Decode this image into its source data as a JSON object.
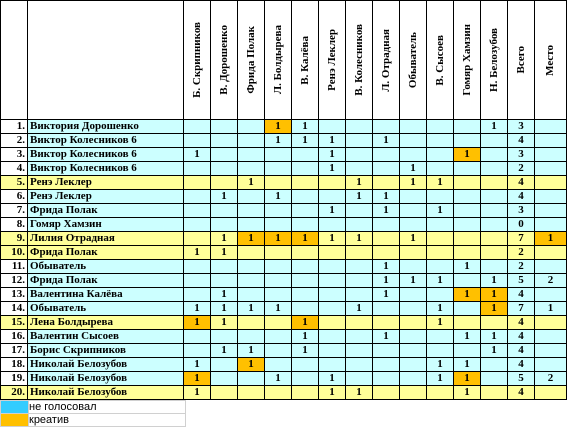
{
  "header": {
    "voters": [
      "Б. Скрипников",
      "В. Дорошенко",
      "Фрида Полак",
      "Л. Болдырева",
      "В. Калёва",
      "Ренэ Леклер",
      "В. Колесников",
      "Л. Отрадная",
      "Обыватель",
      "В. Сысоев",
      "Гомяр Хамзин",
      "Н. Белозубов"
    ],
    "total": "Всего",
    "place": "Место"
  },
  "colors": {
    "row": "#ccffff",
    "highlight": "#ffff99",
    "creative": "#ffc000"
  },
  "rows": [
    {
      "num": "1.",
      "name": "Виктория Дорошенко",
      "votes": [
        null,
        null,
        null,
        "1",
        "1",
        null,
        null,
        null,
        null,
        null,
        null,
        "1"
      ],
      "total": "3",
      "place": null,
      "creative": [
        3
      ],
      "highlight": false
    },
    {
      "num": "2.",
      "name": "Виктор Колесников 6",
      "votes": [
        null,
        null,
        null,
        "1",
        "1",
        "1",
        null,
        "1",
        null,
        null,
        null,
        null
      ],
      "total": "4",
      "place": null,
      "creative": [],
      "highlight": false
    },
    {
      "num": "3.",
      "name": "Виктор Колесников 6",
      "votes": [
        "1",
        null,
        null,
        null,
        null,
        "1",
        null,
        null,
        null,
        null,
        "1",
        null
      ],
      "total": "3",
      "place": null,
      "creative": [
        10
      ],
      "highlight": false
    },
    {
      "num": "4.",
      "name": "Виктор Колесников 6",
      "votes": [
        null,
        null,
        null,
        null,
        null,
        "1",
        null,
        null,
        "1",
        null,
        null,
        null
      ],
      "total": "2",
      "place": null,
      "creative": [],
      "highlight": false
    },
    {
      "num": "5.",
      "name": "Ренэ Леклер",
      "votes": [
        null,
        null,
        "1",
        null,
        null,
        null,
        "1",
        null,
        "1",
        "1",
        null,
        null
      ],
      "total": "4",
      "place": null,
      "creative": [],
      "highlight": true
    },
    {
      "num": "6.",
      "name": "Ренэ Леклер",
      "votes": [
        null,
        "1",
        null,
        "1",
        null,
        null,
        "1",
        "1",
        null,
        null,
        null,
        null
      ],
      "total": "4",
      "place": null,
      "creative": [],
      "highlight": false
    },
    {
      "num": "7.",
      "name": "Фрида Полак",
      "votes": [
        null,
        null,
        null,
        null,
        null,
        "1",
        null,
        "1",
        null,
        "1",
        null,
        null
      ],
      "total": "3",
      "place": null,
      "creative": [],
      "highlight": false
    },
    {
      "num": "8.",
      "name": "Гомяр Хамзин",
      "votes": [
        null,
        null,
        null,
        null,
        null,
        null,
        null,
        null,
        null,
        null,
        null,
        null
      ],
      "total": "0",
      "place": null,
      "creative": [],
      "highlight": false
    },
    {
      "num": "9.",
      "name": "Лилия Отрадная",
      "votes": [
        null,
        "1",
        "1",
        "1",
        "1",
        "1",
        "1",
        null,
        "1",
        null,
        null,
        null
      ],
      "total": "7",
      "place": "1",
      "creative": [
        2,
        3,
        4
      ],
      "place_creative": true,
      "highlight": true
    },
    {
      "num": "10.",
      "name": "Фрида Полак",
      "votes": [
        "1",
        "1",
        null,
        null,
        null,
        null,
        null,
        null,
        null,
        null,
        null,
        null
      ],
      "total": "2",
      "place": null,
      "creative": [],
      "highlight": true
    },
    {
      "num": "11.",
      "name": "Обыватель",
      "votes": [
        null,
        null,
        null,
        null,
        null,
        null,
        null,
        "1",
        null,
        null,
        "1",
        null
      ],
      "total": "2",
      "place": null,
      "creative": [],
      "highlight": false
    },
    {
      "num": "12.",
      "name": "Фрида Полак",
      "votes": [
        null,
        null,
        null,
        null,
        null,
        null,
        null,
        "1",
        "1",
        "1",
        null,
        "1"
      ],
      "total": "5",
      "place": "2",
      "creative": [],
      "highlight": false
    },
    {
      "num": "13.",
      "name": "Валентина Калёва",
      "votes": [
        null,
        "1",
        null,
        null,
        null,
        null,
        null,
        "1",
        null,
        null,
        "1",
        "1"
      ],
      "total": "4",
      "place": null,
      "creative": [
        10,
        11
      ],
      "highlight": false
    },
    {
      "num": "14.",
      "name": "Обыватель",
      "votes": [
        "1",
        "1",
        "1",
        "1",
        null,
        null,
        "1",
        null,
        null,
        "1",
        null,
        "1"
      ],
      "total": "7",
      "place": "1",
      "creative": [
        11
      ],
      "highlight": false
    },
    {
      "num": "15.",
      "name": "Лена Болдырева",
      "votes": [
        "1",
        "1",
        null,
        null,
        "1",
        null,
        null,
        null,
        null,
        "1",
        null,
        null
      ],
      "total": "4",
      "place": null,
      "creative": [
        0,
        4
      ],
      "highlight": true
    },
    {
      "num": "16.",
      "name": "Валентин Сысоев",
      "votes": [
        null,
        null,
        null,
        null,
        "1",
        null,
        null,
        "1",
        null,
        null,
        "1",
        "1"
      ],
      "total": "4",
      "place": null,
      "creative": [],
      "highlight": false
    },
    {
      "num": "17.",
      "name": "Борис Скрипников",
      "votes": [
        null,
        "1",
        "1",
        null,
        "1",
        null,
        null,
        null,
        null,
        null,
        null,
        "1"
      ],
      "total": "4",
      "place": null,
      "creative": [],
      "highlight": false
    },
    {
      "num": "18.",
      "name": "Николай Белозубов",
      "votes": [
        "1",
        null,
        "1",
        null,
        null,
        null,
        null,
        null,
        null,
        "1",
        "1",
        null
      ],
      "total": "4",
      "place": null,
      "creative": [
        2
      ],
      "highlight": false
    },
    {
      "num": "19.",
      "name": "Николай Белозубов",
      "votes": [
        "1",
        null,
        null,
        "1",
        null,
        "1",
        null,
        null,
        null,
        "1",
        "1",
        null
      ],
      "total": "5",
      "place": "2",
      "creative": [
        0,
        10
      ],
      "highlight": false
    },
    {
      "num": "20.",
      "name": "Николай Белозубов",
      "votes": [
        "1",
        null,
        null,
        null,
        null,
        "1",
        "1",
        null,
        null,
        null,
        "1",
        null
      ],
      "total": "4",
      "place": null,
      "creative": [],
      "highlight": true
    }
  ],
  "legend": [
    {
      "label": "не голосовал",
      "color": "#33ccff"
    },
    {
      "label": "креатив",
      "color": "#ffc000"
    }
  ]
}
